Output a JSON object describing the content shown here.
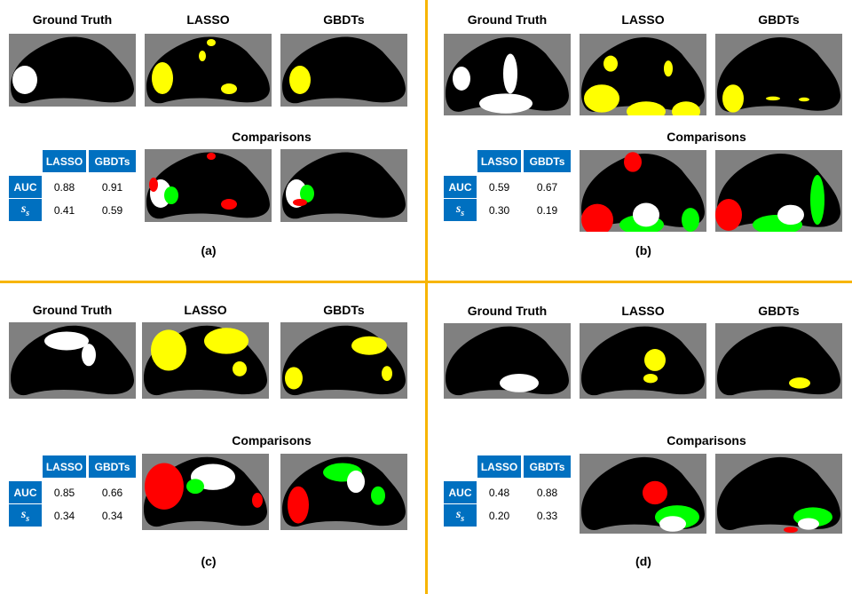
{
  "colors": {
    "divider": "#f7b500",
    "header": "#0070c0",
    "background": "#808080",
    "brain": "#000000",
    "ground_truth": "#ffffff",
    "prediction": "#ffff00",
    "false_positive": "#ff0000",
    "false_negative": "#00ff00",
    "true_positive": "#ffffff"
  },
  "panels": [
    {
      "label": "(a)",
      "titles": [
        "Ground Truth",
        "LASSO",
        "GBDTs"
      ],
      "comparisons_title": "Comparisons",
      "table": {
        "headers": [
          "LASSO",
          "GBDTs"
        ],
        "rows": [
          {
            "metric": "AUC",
            "values": [
              "0.88",
              "0.91"
            ]
          },
          {
            "metric": "s",
            "sub": "s",
            "values": [
              "0.41",
              "0.59"
            ]
          }
        ]
      }
    },
    {
      "label": "(b)",
      "titles": [
        "Ground Truth",
        "LASSO",
        "GBDTs"
      ],
      "comparisons_title": "Comparisons",
      "table": {
        "headers": [
          "LASSO",
          "GBDTs"
        ],
        "rows": [
          {
            "metric": "AUC",
            "values": [
              "0.59",
              "0.67"
            ]
          },
          {
            "metric": "s",
            "sub": "s",
            "values": [
              "0.30",
              "0.19"
            ]
          }
        ]
      }
    },
    {
      "label": "(c)",
      "titles": [
        "Ground Truth",
        "LASSO",
        "GBDTs"
      ],
      "comparisons_title": "Comparisons",
      "table": {
        "headers": [
          "LASSO",
          "GBDTs"
        ],
        "rows": [
          {
            "metric": "AUC",
            "values": [
              "0.85",
              "0.66"
            ]
          },
          {
            "metric": "s",
            "sub": "s",
            "values": [
              "0.34",
              "0.34"
            ]
          }
        ]
      }
    },
    {
      "label": "(d)",
      "titles": [
        "Ground Truth",
        "LASSO",
        "GBDTs"
      ],
      "comparisons_title": "Comparisons",
      "table": {
        "headers": [
          "LASSO",
          "GBDTs"
        ],
        "rows": [
          {
            "metric": "AUC",
            "values": [
              "0.48",
              "0.88"
            ]
          },
          {
            "metric": "s",
            "sub": "s",
            "values": [
              "0.20",
              "0.33"
            ]
          }
        ]
      }
    }
  ]
}
